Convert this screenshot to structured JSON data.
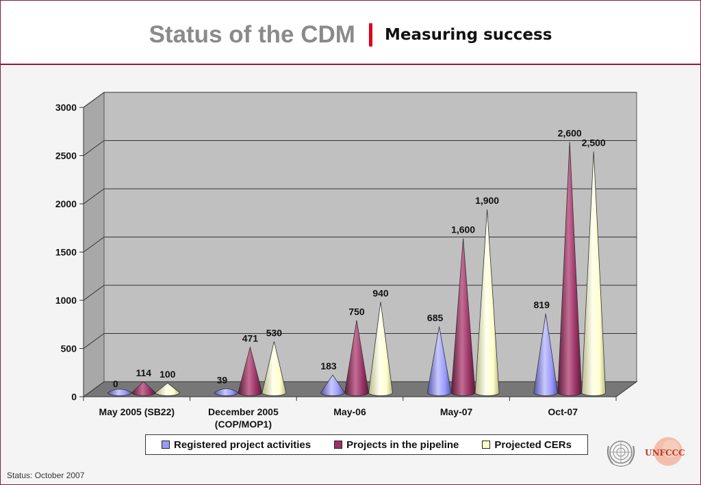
{
  "title": {
    "main": "Status of the CDM",
    "subtitle": "Measuring success"
  },
  "status_note": "Status: October 2007",
  "logos": {
    "un": "UN emblem",
    "unfccc_text": "UNFCCC"
  },
  "colors": {
    "registered": "#9999ff",
    "pipeline": "#993366",
    "cers": "#ffffcc",
    "accent": "#8b1a3a",
    "separator": "#e0001a"
  },
  "chart_data": {
    "type": "bar",
    "style": "3d-cone",
    "categories": [
      "May 2005 (SB22)",
      "December 2005\n(COP/MOP1)",
      "May-06",
      "May-07",
      "Oct-07"
    ],
    "series": [
      {
        "name": "Registered project activities",
        "values": [
          0,
          39,
          183,
          685,
          819
        ],
        "labels": [
          "0",
          "39",
          "183",
          "685",
          "819"
        ]
      },
      {
        "name": "Projects in the pipeline",
        "values": [
          114,
          471,
          750,
          1600,
          2600
        ],
        "labels": [
          "114",
          "471",
          "750",
          "1,600",
          "2,600"
        ]
      },
      {
        "name": "Projected CERs",
        "values": [
          100,
          530,
          940,
          1900,
          2500
        ],
        "labels": [
          "100",
          "530",
          "940",
          "1,900",
          "2,500"
        ]
      }
    ],
    "yticks": [
      0,
      500,
      1000,
      1500,
      2000,
      2500,
      3000
    ],
    "ylim": [
      0,
      3000
    ],
    "grid": true,
    "legend_position": "bottom"
  }
}
